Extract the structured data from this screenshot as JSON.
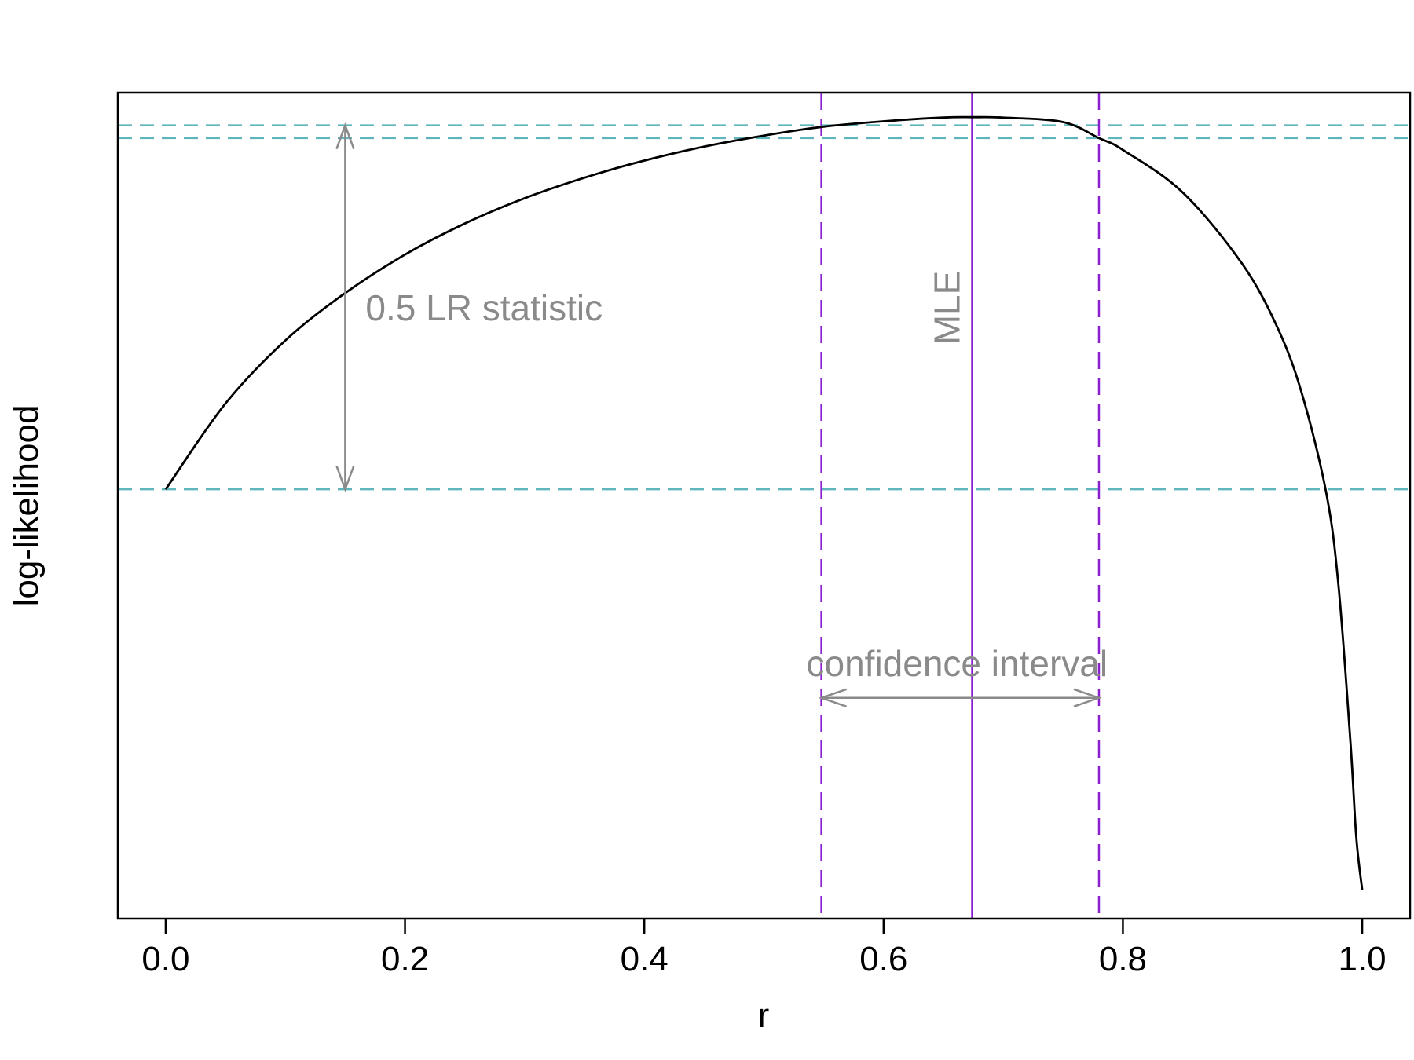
{
  "chart_data": {
    "type": "line",
    "title": "",
    "xlabel": "r",
    "ylabel": "log-likelihood",
    "xlim": [
      -0.04,
      1.04
    ],
    "ylim": [
      -0.97,
      0.04
    ],
    "grid": false,
    "legend": "none",
    "x_ticks": [
      "0.0",
      "0.2",
      "0.4",
      "0.6",
      "0.8",
      "1.0"
    ],
    "series": [
      {
        "x": [
          0.0,
          0.05,
          0.1,
          0.15,
          0.2,
          0.25,
          0.3,
          0.35,
          0.4,
          0.45,
          0.5,
          0.55,
          0.6,
          0.65,
          0.674,
          0.7,
          0.75,
          0.78,
          0.8,
          0.85,
          0.9,
          0.93,
          0.95,
          0.97,
          0.98,
          0.99,
          0.995,
          1.0
        ],
        "y": [
          -0.445,
          -0.34,
          -0.263,
          -0.205,
          -0.158,
          -0.12,
          -0.089,
          -0.064,
          -0.043,
          -0.026,
          -0.0125,
          -0.0016,
          0.005,
          0.0096,
          0.01,
          0.0095,
          0.004,
          -0.0156,
          -0.03,
          -0.082,
          -0.17,
          -0.25,
          -0.33,
          -0.45,
          -0.56,
          -0.75,
          -0.87,
          -0.935
        ]
      }
    ],
    "reference_lines": {
      "horizontal": [
        0.0,
        -0.0156,
        -0.445
      ],
      "mle": 0.674,
      "ci": [
        0.548,
        0.78
      ]
    },
    "annotations": {
      "lr_label": "0.5 LR statistic",
      "lr_arrow_x": 0.15,
      "mle_label": "MLE",
      "ci_label": "confidence interval",
      "ci_arrow_y": -0.7
    },
    "colors": {
      "curve": "#000000",
      "hlines": "#5fb5bb",
      "vlines": "#8b1fd2",
      "annotation": "#8a8a8a"
    }
  }
}
